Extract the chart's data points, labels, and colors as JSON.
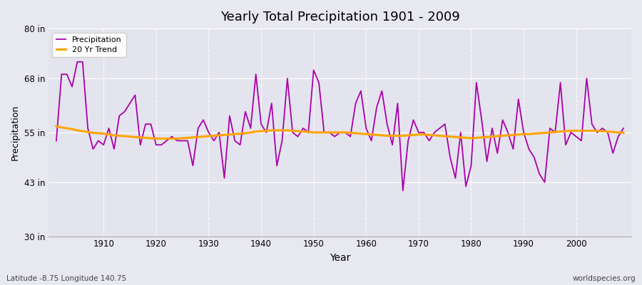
{
  "title": "Yearly Total Precipitation 1901 - 2009",
  "xlabel": "Year",
  "ylabel": "Precipitation",
  "subtitle_left": "Latitude -8.75 Longitude 140.75",
  "subtitle_right": "worldspecies.org",
  "start_year": 1901,
  "end_year": 2009,
  "ylim": [
    30,
    80
  ],
  "yticks": [
    30,
    43,
    55,
    68,
    80
  ],
  "ytick_labels": [
    "30 in",
    "43 in",
    "55 in",
    "68 in",
    "80 in"
  ],
  "precip_color": "#AA00AA",
  "trend_color": "#FFA500",
  "bg_color": "#E8E8F0",
  "plot_bg_color": "#E4E4EE",
  "grid_color": "#FFFFFF",
  "precipitation": [
    53,
    69,
    69,
    66,
    72,
    72,
    56,
    51,
    53,
    52,
    56,
    51,
    59,
    60,
    62,
    64,
    52,
    57,
    57,
    52,
    52,
    53,
    54,
    53,
    53,
    53,
    47,
    56,
    58,
    55,
    53,
    55,
    44,
    59,
    53,
    52,
    60,
    56,
    69,
    57,
    55,
    62,
    47,
    53,
    68,
    55,
    54,
    56,
    55,
    70,
    67,
    55,
    55,
    54,
    55,
    55,
    54,
    62,
    65,
    56,
    53,
    61,
    65,
    57,
    52,
    62,
    41,
    53,
    58,
    55,
    55,
    53,
    55,
    56,
    57,
    49,
    44,
    55,
    42,
    47,
    67,
    58,
    48,
    56,
    50,
    58,
    55,
    51,
    63,
    55,
    51,
    49,
    45,
    43,
    56,
    55,
    67,
    52,
    55,
    54,
    53,
    68,
    57,
    55,
    56,
    55,
    50,
    54,
    56
  ],
  "trend": [
    56.5,
    56.2,
    56.0,
    55.8,
    55.5,
    55.3,
    55.1,
    54.9,
    54.8,
    54.7,
    54.5,
    54.3,
    54.2,
    54.1,
    54.0,
    53.9,
    53.8,
    53.7,
    53.6,
    53.5,
    53.5,
    53.5,
    53.5,
    53.5,
    53.6,
    53.7,
    53.8,
    53.9,
    54.0,
    54.1,
    54.2,
    54.3,
    54.4,
    54.5,
    54.6,
    54.7,
    54.8,
    55.0,
    55.2,
    55.3,
    55.4,
    55.5,
    55.5,
    55.5,
    55.5,
    55.4,
    55.3,
    55.2,
    55.1,
    55.0,
    55.0,
    55.0,
    55.0,
    55.0,
    55.0,
    55.0,
    54.9,
    54.8,
    54.7,
    54.6,
    54.5,
    54.4,
    54.3,
    54.2,
    54.2,
    54.2,
    54.2,
    54.3,
    54.4,
    54.5,
    54.5,
    54.4,
    54.3,
    54.2,
    54.1,
    54.0,
    53.9,
    53.8,
    53.7,
    53.6,
    53.7,
    53.8,
    53.9,
    54.0,
    54.1,
    54.2,
    54.3,
    54.4,
    54.5,
    54.6,
    54.6,
    54.7,
    54.8,
    54.9,
    55.0,
    55.1,
    55.2,
    55.3,
    55.4,
    55.4,
    55.4,
    55.4,
    55.4,
    55.4,
    55.3,
    55.2,
    55.1,
    55.0,
    54.9
  ]
}
